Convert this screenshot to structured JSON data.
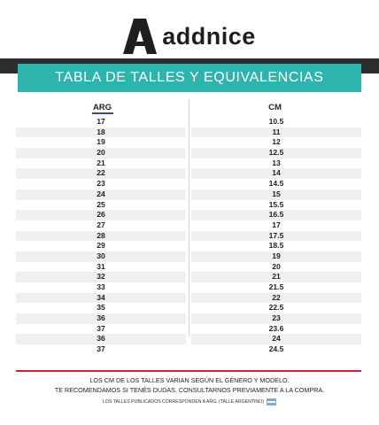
{
  "brand": {
    "name": "addnice"
  },
  "title_bar": {
    "title": "TABLA DE TALLES Y EQUIVALENCIAS"
  },
  "table": {
    "headers": [
      "ARG",
      "CM"
    ],
    "rows": [
      [
        "17",
        "10.5"
      ],
      [
        "18",
        "11"
      ],
      [
        "19",
        "12"
      ],
      [
        "20",
        "12.5"
      ],
      [
        "21",
        "13"
      ],
      [
        "22",
        "14"
      ],
      [
        "23",
        "14.5"
      ],
      [
        "24",
        "15"
      ],
      [
        "25",
        "15.5"
      ],
      [
        "26",
        "16.5"
      ],
      [
        "27",
        "17"
      ],
      [
        "28",
        "17.5"
      ],
      [
        "29",
        "18.5"
      ],
      [
        "30",
        "19"
      ],
      [
        "31",
        "20"
      ],
      [
        "32",
        "21"
      ],
      [
        "33",
        "21.5"
      ],
      [
        "34",
        "22"
      ],
      [
        "35",
        "22.5"
      ],
      [
        "36",
        "23"
      ],
      [
        "37",
        "23.6"
      ],
      [
        "36",
        "24"
      ],
      [
        "37",
        "24.5"
      ]
    ]
  },
  "notes": {
    "line1": "LOS CM DE LOS TALLES VARIAN SEGÚN EL GÉNERO Y MODELO.",
    "line2": "TE RECOMENDAMOS SI TENÉS DUDAS, CONSULTARNOS PREVIAMENTE A LA COMPRA.",
    "line3": "LOS TALLES PUBLICADOS CORRESPONDEN A ARG. (TALLE ARGENTINO)"
  },
  "colors": {
    "accent": "#2fb3ad",
    "band": "#2d2d2d",
    "divider_red": "#c8252c"
  },
  "icons": {
    "logo": "addnice-a-logo-icon",
    "flag": "argentina-flag-icon"
  }
}
